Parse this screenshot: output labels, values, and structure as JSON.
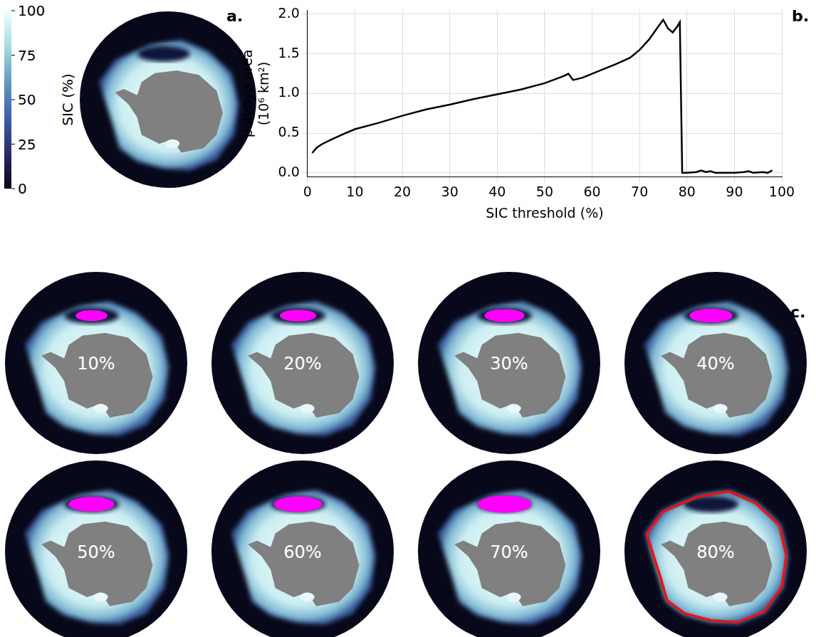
{
  "chart_data": {
    "type": "line",
    "panel_label": "b.",
    "x_label": "SIC threshold (%)",
    "y_label": [
      "polynya area",
      "(10⁶ km²)"
    ],
    "x": [
      1,
      2,
      3,
      5,
      8,
      10,
      15,
      20,
      25,
      30,
      35,
      40,
      45,
      50,
      54,
      55,
      56,
      58,
      60,
      65,
      68,
      70,
      72,
      74,
      75,
      76,
      77,
      78,
      78.5,
      79,
      80,
      82,
      83,
      84,
      85,
      86,
      88,
      90,
      92,
      93,
      94,
      96,
      97,
      98
    ],
    "values": [
      0.25,
      0.32,
      0.36,
      0.42,
      0.5,
      0.55,
      0.63,
      0.72,
      0.8,
      0.86,
      0.93,
      0.99,
      1.05,
      1.13,
      1.22,
      1.25,
      1.17,
      1.2,
      1.25,
      1.37,
      1.45,
      1.55,
      1.68,
      1.85,
      1.93,
      1.82,
      1.77,
      1.85,
      1.9,
      0.0,
      0.0,
      0.01,
      0.03,
      0.01,
      0.02,
      0.0,
      0.0,
      0.0,
      0.01,
      0.02,
      0.0,
      0.01,
      0.0,
      0.03
    ],
    "color": "#000000",
    "xlim": [
      0,
      100
    ],
    "xticks": [
      0,
      10,
      20,
      30,
      40,
      50,
      60,
      70,
      80,
      90,
      100
    ],
    "ylim": [
      -0.05,
      2.05
    ],
    "yticks": [
      {
        "value": 0,
        "label": "0.0"
      },
      {
        "value": 0.5,
        "label": "0.5"
      },
      {
        "value": 1,
        "label": "1.0"
      },
      {
        "value": 1.5,
        "label": "1.5"
      },
      {
        "value": 2,
        "label": "2.0"
      }
    ],
    "grid": true
  },
  "panel_a": {
    "panel_label": "a.",
    "colorbar": {
      "label": "SIC (%)",
      "range": [
        0,
        100
      ],
      "ticks": [
        0,
        25,
        50,
        75,
        100
      ]
    }
  },
  "panel_c": {
    "panel_label": "c.",
    "thresholds": [
      10,
      20,
      30,
      40,
      50,
      60,
      70,
      80
    ],
    "labels": [
      "10%",
      "20%",
      "30%",
      "40%",
      "50%",
      "60%",
      "70%",
      "80%"
    ]
  }
}
